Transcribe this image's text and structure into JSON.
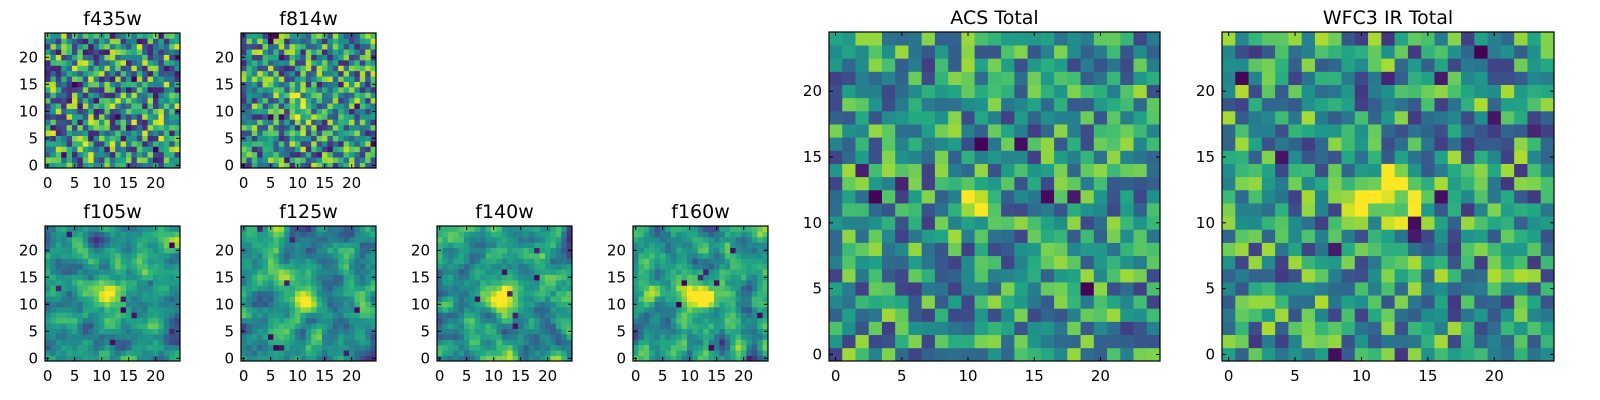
{
  "chart_data": [
    {
      "type": "heatmap",
      "title": "f435w",
      "grid_size": 25,
      "colormap": "viridis",
      "xticks": [
        "0",
        "5",
        "10",
        "15",
        "20"
      ],
      "yticks": [
        "0",
        "5",
        "10",
        "15",
        "20"
      ],
      "xlim": [
        0,
        24
      ],
      "ylim": [
        0,
        24
      ],
      "grid": false,
      "seed": 11,
      "contrast": 1.0,
      "smooth": 0,
      "blob": null,
      "dark_count": 16
    },
    {
      "type": "heatmap",
      "title": "f814w",
      "grid_size": 25,
      "colormap": "viridis",
      "xticks": [
        "0",
        "5",
        "10",
        "15",
        "20"
      ],
      "yticks": [
        "0",
        "5",
        "10",
        "15",
        "20"
      ],
      "xlim": [
        0,
        24
      ],
      "ylim": [
        0,
        24
      ],
      "grid": false,
      "seed": 23,
      "contrast": 0.9,
      "smooth": 0,
      "blob": {
        "x": 11,
        "y": 11,
        "radius": 1.6,
        "strength": 0.35
      },
      "dark_count": 14
    },
    {
      "type": "heatmap",
      "title": "f105w",
      "grid_size": 25,
      "colormap": "viridis",
      "xticks": [
        "0",
        "5",
        "10",
        "15",
        "20"
      ],
      "yticks": [
        "0",
        "5",
        "10",
        "15",
        "20"
      ],
      "xlim": [
        0,
        24
      ],
      "ylim": [
        0,
        24
      ],
      "grid": false,
      "seed": 37,
      "contrast": 0.85,
      "smooth": 1,
      "blob": {
        "x": 11,
        "y": 11,
        "radius": 1.8,
        "strength": 0.55
      },
      "dark_count": 8
    },
    {
      "type": "heatmap",
      "title": "f125w",
      "grid_size": 25,
      "colormap": "viridis",
      "xticks": [
        "0",
        "5",
        "10",
        "15",
        "20"
      ],
      "yticks": [
        "0",
        "5",
        "10",
        "15",
        "20"
      ],
      "xlim": [
        0,
        24
      ],
      "ylim": [
        0,
        24
      ],
      "grid": false,
      "seed": 41,
      "contrast": 0.85,
      "smooth": 1,
      "blob": {
        "x": 11,
        "y": 11,
        "radius": 1.8,
        "strength": 0.55
      },
      "dark_count": 8
    },
    {
      "type": "heatmap",
      "title": "f140w",
      "grid_size": 25,
      "colormap": "viridis",
      "xticks": [
        "0",
        "5",
        "10",
        "15",
        "20"
      ],
      "yticks": [
        "0",
        "5",
        "10",
        "15",
        "20"
      ],
      "xlim": [
        0,
        24
      ],
      "ylim": [
        0,
        24
      ],
      "grid": false,
      "seed": 53,
      "contrast": 0.85,
      "smooth": 1,
      "blob": {
        "x": 12,
        "y": 11,
        "radius": 1.8,
        "strength": 0.55
      },
      "dark_count": 8
    },
    {
      "type": "heatmap",
      "title": "f160w",
      "grid_size": 25,
      "colormap": "viridis",
      "xticks": [
        "0",
        "5",
        "10",
        "15",
        "20"
      ],
      "yticks": [
        "0",
        "5",
        "10",
        "15",
        "20"
      ],
      "xlim": [
        0,
        24
      ],
      "ylim": [
        0,
        24
      ],
      "grid": false,
      "seed": 67,
      "contrast": 0.85,
      "smooth": 1,
      "blob": {
        "x": 12,
        "y": 12,
        "radius": 1.8,
        "strength": 0.55
      },
      "dark_count": 9
    },
    {
      "type": "heatmap",
      "title": "ACS Total",
      "grid_size": 25,
      "colormap": "viridis",
      "xticks": [
        "0",
        "5",
        "10",
        "15",
        "20"
      ],
      "yticks": [
        "0",
        "5",
        "10",
        "15",
        "20"
      ],
      "xlim": [
        0,
        24
      ],
      "ylim": [
        0,
        24
      ],
      "grid": false,
      "seed": 79,
      "contrast": 0.75,
      "smooth": 0,
      "blob": {
        "x": 11,
        "y": 12,
        "radius": 1.2,
        "strength": 0.3
      },
      "dark_count": 8
    },
    {
      "type": "heatmap",
      "title": "WFC3 IR Total",
      "grid_size": 25,
      "colormap": "viridis",
      "xticks": [
        "0",
        "5",
        "10",
        "15",
        "20"
      ],
      "yticks": [
        "0",
        "5",
        "10",
        "15",
        "20"
      ],
      "xlim": [
        0,
        24
      ],
      "ylim": [
        0,
        24
      ],
      "grid": false,
      "seed": 97,
      "contrast": 0.8,
      "smooth": 0,
      "blob": {
        "x": 12,
        "y": 12,
        "radius": 1.6,
        "strength": 0.6
      },
      "dark_count": 12
    }
  ]
}
